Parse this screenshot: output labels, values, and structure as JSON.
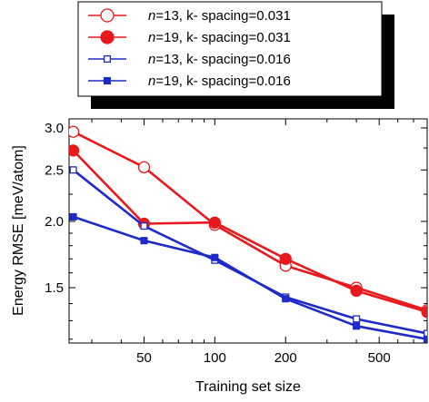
{
  "chart_data": {
    "type": "line",
    "xlabel": "Training set size",
    "ylabel": "Energy RMSE [meV/atom]",
    "xscale": "log",
    "yscale": "log",
    "xlim": [
      24,
      800
    ],
    "ylim": [
      1.18,
      3.12
    ],
    "xticks": [
      50,
      100,
      200,
      500
    ],
    "yticks": [
      1.5,
      2.0,
      2.5,
      3.0
    ],
    "ytick_labels": [
      "1.5",
      "2.0",
      "2.5",
      "3.0"
    ],
    "legend_position": "top",
    "series": [
      {
        "name_italic": "n",
        "name_rest": "=13, k- spacing=0.031",
        "color": "#e8191c",
        "marker": "circle",
        "filled": false,
        "x": [
          25,
          50,
          100,
          200,
          400,
          800
        ],
        "y": [
          2.95,
          2.53,
          1.97,
          1.65,
          1.5,
          1.36
        ]
      },
      {
        "name_italic": "n",
        "name_rest": "=19, k- spacing=0.031",
        "color": "#e8191c",
        "marker": "circle",
        "filled": true,
        "x": [
          25,
          50,
          100,
          200,
          400,
          800
        ],
        "y": [
          2.72,
          1.98,
          1.99,
          1.7,
          1.48,
          1.35
        ]
      },
      {
        "name_italic": "n",
        "name_rest": "=13, k- spacing=0.016",
        "color": "#1f2bc8",
        "marker": "square",
        "filled": false,
        "x": [
          25,
          50,
          100,
          200,
          400,
          800
        ],
        "y": [
          2.5,
          1.96,
          1.69,
          1.44,
          1.31,
          1.23
        ]
      },
      {
        "name_italic": "n",
        "name_rest": "=19, k- spacing=0.016",
        "color": "#1f2bc8",
        "marker": "square",
        "filled": true,
        "x": [
          25,
          50,
          100,
          200,
          400,
          800
        ],
        "y": [
          2.04,
          1.84,
          1.71,
          1.43,
          1.27,
          1.2
        ]
      }
    ]
  }
}
